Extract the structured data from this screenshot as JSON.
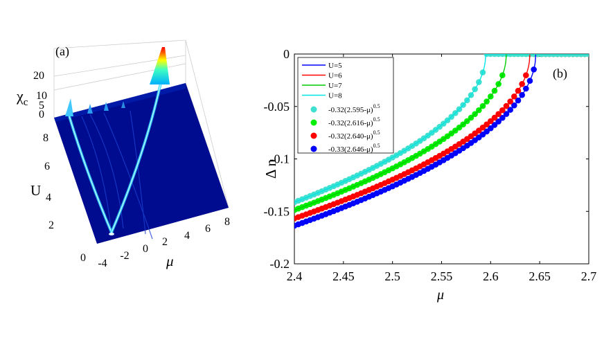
{
  "chart_data": [
    {
      "type": "surface",
      "panel_label": "(a)",
      "xlabel": "μ",
      "ylabel": "U",
      "zlabel_base": "χ",
      "zlabel_sub": "c",
      "x_ticks": [
        "-4",
        "-2",
        "0",
        "2",
        "4",
        "6",
        "8"
      ],
      "y_ticks": [
        "0",
        "2",
        "4",
        "6",
        "8"
      ],
      "z_ticks": [
        "0",
        "5",
        "10",
        "20"
      ],
      "xlim": [
        -5,
        8
      ],
      "ylim": [
        0,
        8
      ],
      "zlim": [
        0,
        22
      ],
      "colormap": "jet",
      "ridges": [
        {
          "name": "left-branch",
          "mu_at_U8": -5,
          "mu_at_U0": -3.1
        },
        {
          "name": "right-branch",
          "mu_at_U8": 2.5,
          "mu_at_U0": -2.6
        }
      ]
    },
    {
      "type": "line+scatter",
      "panel_label": "(b)",
      "xlabel": "μ",
      "ylabel": "Δ n",
      "xlim": [
        2.4,
        2.7
      ],
      "ylim": [
        -0.2,
        0
      ],
      "x_ticks": [
        "2.4",
        "2.45",
        "2.5",
        "2.55",
        "2.6",
        "2.65",
        "2.7"
      ],
      "y_ticks": [
        "0",
        "-0.05",
        "-0.1",
        "-0.15",
        "-0.2"
      ],
      "legend_position": "top-left",
      "series": [
        {
          "name": "U=5",
          "kind": "line",
          "color": "#0000ff",
          "a": 0.33,
          "mu_c": 2.646
        },
        {
          "name": "U=6",
          "kind": "line",
          "color": "#ff0000",
          "a": 0.32,
          "mu_c": 2.64
        },
        {
          "name": "U=7",
          "kind": "line",
          "color": "#00cc00",
          "a": 0.32,
          "mu_c": 2.616
        },
        {
          "name": "U=8",
          "kind": "line",
          "color": "#00e5e5",
          "a": 0.32,
          "mu_c": 2.595
        }
      ],
      "fits": [
        {
          "label_main": "-0.32(2.595-μ)",
          "label_exp": "0.5",
          "color": "#40e0d0",
          "a": 0.32,
          "mu_c": 2.595
        },
        {
          "label_main": "-0.32(2.616-μ)",
          "label_exp": "0.5",
          "color": "#00ee00",
          "a": 0.32,
          "mu_c": 2.616
        },
        {
          "label_main": "-0.32(2.640-μ)",
          "label_exp": "0.5",
          "color": "#ff0000",
          "a": 0.32,
          "mu_c": 2.64
        },
        {
          "label_main": "-0.33(2.646-μ)",
          "label_exp": "0.5",
          "color": "#0000ff",
          "a": 0.33,
          "mu_c": 2.646
        }
      ]
    }
  ]
}
